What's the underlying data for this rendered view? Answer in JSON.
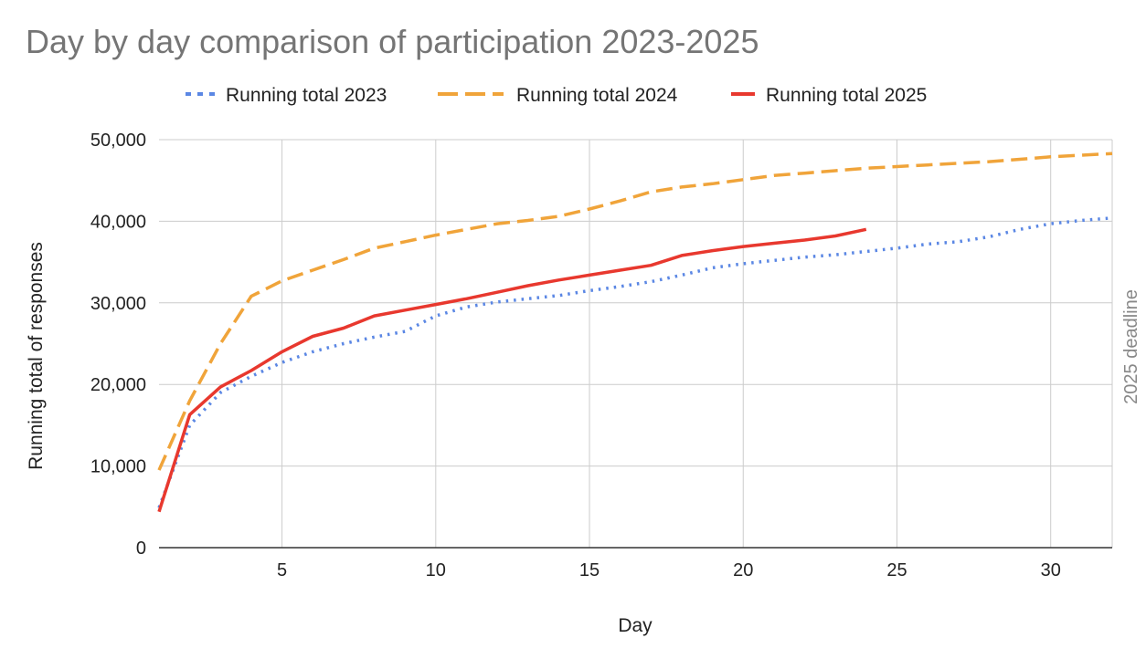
{
  "chart_data": {
    "type": "line",
    "title": "Day by day comparison of participation 2023-2025",
    "xlabel": "Day",
    "ylabel": "Running total of responses",
    "xlim": [
      1,
      32
    ],
    "ylim": [
      0,
      50000
    ],
    "xticks": [
      5,
      10,
      15,
      20,
      25,
      30
    ],
    "yticks": [
      0,
      10000,
      20000,
      30000,
      40000,
      50000
    ],
    "xtick_labels": [
      "5",
      "10",
      "15",
      "20",
      "25",
      "30"
    ],
    "ytick_labels": [
      "0",
      "10,000",
      "20,000",
      "30,000",
      "40,000",
      "50,000"
    ],
    "grid": true,
    "legend_position": "top",
    "annotation": {
      "label": "2025 deadline",
      "x": 32
    },
    "series": [
      {
        "name": "Running total 2023",
        "color": "#5b87e4",
        "style": "dotted",
        "x": [
          1,
          2,
          3,
          4,
          5,
          6,
          7,
          8,
          9,
          10,
          11,
          12,
          13,
          14,
          15,
          16,
          17,
          18,
          19,
          20,
          21,
          22,
          23,
          24,
          25,
          26,
          27,
          28,
          29,
          30,
          31,
          32
        ],
        "values": [
          4900,
          15000,
          19000,
          21000,
          22700,
          24000,
          25000,
          25800,
          26500,
          28400,
          29500,
          30100,
          30500,
          30900,
          31500,
          32000,
          32600,
          33400,
          34300,
          34800,
          35200,
          35600,
          35900,
          36300,
          36700,
          37200,
          37500,
          38100,
          39000,
          39700,
          40100,
          40400
        ]
      },
      {
        "name": "Running total 2024",
        "color": "#f0a43a",
        "style": "dashed",
        "x": [
          1,
          2,
          3,
          4,
          5,
          6,
          7,
          8,
          9,
          10,
          11,
          12,
          13,
          14,
          15,
          16,
          17,
          18,
          19,
          20,
          21,
          22,
          23,
          24,
          25,
          26,
          27,
          28,
          29,
          30,
          31,
          32
        ],
        "values": [
          9500,
          18000,
          25000,
          30800,
          32700,
          34000,
          35300,
          36700,
          37500,
          38300,
          39000,
          39700,
          40100,
          40600,
          41500,
          42500,
          43600,
          44200,
          44600,
          45100,
          45600,
          45900,
          46200,
          46500,
          46700,
          46900,
          47100,
          47300,
          47600,
          47900,
          48100,
          48300
        ]
      },
      {
        "name": "Running total 2025",
        "color": "#e8382e",
        "style": "solid",
        "x": [
          1,
          2,
          3,
          4,
          5,
          6,
          7,
          8,
          9,
          10,
          11,
          12,
          13,
          14,
          15,
          16,
          17,
          18,
          19,
          20,
          21,
          22,
          23,
          24
        ],
        "values": [
          4400,
          16300,
          19700,
          21700,
          24000,
          25900,
          26900,
          28400,
          29100,
          29800,
          30500,
          31300,
          32100,
          32800,
          33400,
          34000,
          34600,
          35800,
          36400,
          36900,
          37300,
          37700,
          38200,
          39000
        ]
      }
    ]
  }
}
